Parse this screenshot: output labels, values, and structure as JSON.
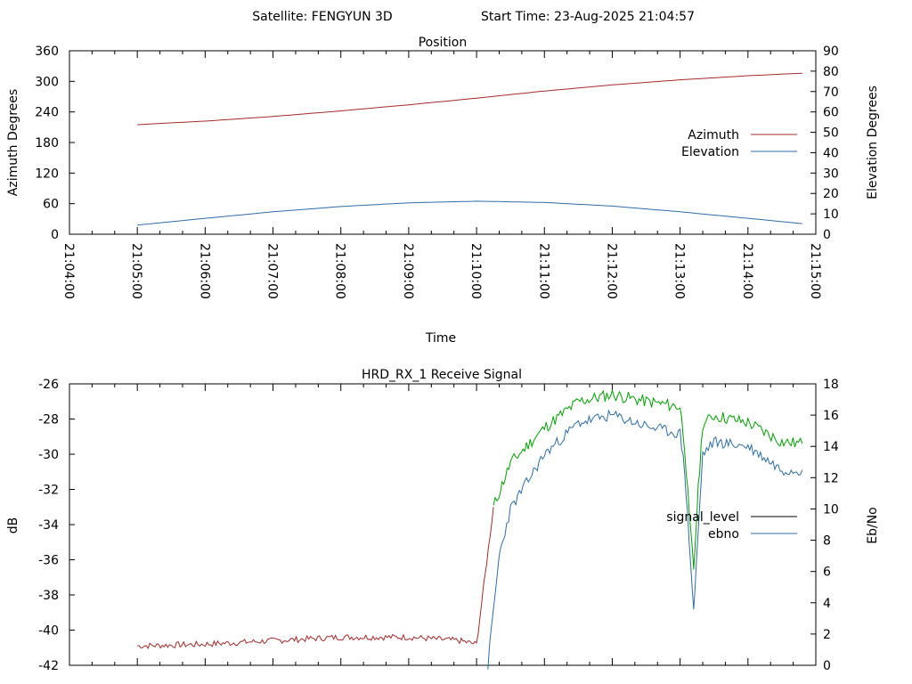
{
  "header": {
    "satellite": "Satellite: FENGYUN 3D",
    "start_time": "Start Time: 23-Aug-2025 21:04:57"
  },
  "colors": {
    "azimuth": "#a52a2a",
    "elevation": "#2e6ea6",
    "signal_level": "#000000",
    "signal_trace_low": "#a52a2a",
    "signal_trace_high": "#00a000",
    "ebno": "#2e6ea6"
  },
  "chart_data": [
    {
      "type": "line",
      "title": "Position",
      "xlabel": "Time",
      "ylabel": "Azimuth Degrees",
      "y2label": "Elevation Degrees",
      "xlim_minutes": [
        240,
        900
      ],
      "ylim": [
        0,
        360
      ],
      "y2lim": [
        0,
        90
      ],
      "yticks": [
        "0",
        "60",
        "120",
        "180",
        "240",
        "300",
        "360"
      ],
      "y2ticks": [
        "0",
        "10",
        "20",
        "30",
        "40",
        "50",
        "60",
        "70",
        "80",
        "90"
      ],
      "xticks": [
        "21:04:00",
        "21:05:00",
        "21:06:00",
        "21:07:00",
        "21:08:00",
        "21:09:00",
        "21:10:00",
        "21:11:00",
        "21:12:00",
        "21:13:00",
        "21:14:00",
        "21:15:00"
      ],
      "legend_position": "right",
      "series": [
        {
          "name": "Azimuth",
          "axis": "left",
          "x": [
            "21:05:00",
            "21:06:00",
            "21:07:00",
            "21:08:00",
            "21:09:00",
            "21:10:00",
            "21:11:00",
            "21:12:00",
            "21:13:00",
            "21:14:00",
            "21:14:48"
          ],
          "y": [
            215,
            222,
            231,
            242,
            254,
            267,
            281,
            293,
            303,
            311,
            316
          ]
        },
        {
          "name": "Elevation",
          "axis": "right",
          "x": [
            "21:05:00",
            "21:06:00",
            "21:07:00",
            "21:08:00",
            "21:09:00",
            "21:10:00",
            "21:11:00",
            "21:12:00",
            "21:13:00",
            "21:14:00",
            "21:14:48"
          ],
          "y": [
            4.5,
            7.8,
            11.0,
            13.6,
            15.4,
            16.2,
            15.6,
            13.8,
            11.0,
            7.8,
            5.2
          ]
        }
      ]
    },
    {
      "type": "line",
      "title": "HRD_RX_1 Receive Signal",
      "ylabel": "dB",
      "y2label": "Eb/No",
      "ylim": [
        -42,
        -26
      ],
      "y2lim": [
        0,
        18
      ],
      "yticks": [
        "-26",
        "-28",
        "-30",
        "-32",
        "-34",
        "-36",
        "-38",
        "-40",
        "-42"
      ],
      "y2ticks": [
        "0",
        "2",
        "4",
        "6",
        "8",
        "10",
        "12",
        "14",
        "16",
        "18"
      ],
      "legend_position": "right",
      "series": [
        {
          "name": "signal_level",
          "axis": "left",
          "x": [
            "21:05:00",
            "21:06:00",
            "21:07:00",
            "21:08:00",
            "21:09:00",
            "21:09:45",
            "21:10:00",
            "21:10:15",
            "21:10:30",
            "21:11:00",
            "21:11:30",
            "21:12:00",
            "21:12:30",
            "21:13:00",
            "21:13:04",
            "21:13:08",
            "21:13:12",
            "21:13:16",
            "21:13:20",
            "21:13:30",
            "21:14:00",
            "21:14:30",
            "21:14:48"
          ],
          "y": [
            -40.9,
            -40.8,
            -40.6,
            -40.4,
            -40.4,
            -40.6,
            -40.8,
            -33.0,
            -30.5,
            -28.5,
            -27.0,
            -26.6,
            -27.0,
            -27.3,
            -29.5,
            -33.5,
            -36.5,
            -32.0,
            -28.3,
            -27.8,
            -28.2,
            -29.3,
            -29.4
          ]
        },
        {
          "name": "ebno",
          "axis": "right",
          "x": [
            "21:10:10",
            "21:10:15",
            "21:10:20",
            "21:10:30",
            "21:11:00",
            "21:11:30",
            "21:12:00",
            "21:12:30",
            "21:13:00",
            "21:13:04",
            "21:13:08",
            "21:13:12",
            "21:13:16",
            "21:13:20",
            "21:13:30",
            "21:14:00",
            "21:14:30",
            "21:14:48"
          ],
          "y": [
            0,
            3.5,
            7.0,
            10.0,
            13.5,
            15.5,
            16.0,
            15.3,
            14.8,
            12.5,
            8.0,
            3.5,
            8.5,
            13.5,
            14.3,
            14.0,
            12.5,
            12.5
          ]
        }
      ]
    }
  ]
}
